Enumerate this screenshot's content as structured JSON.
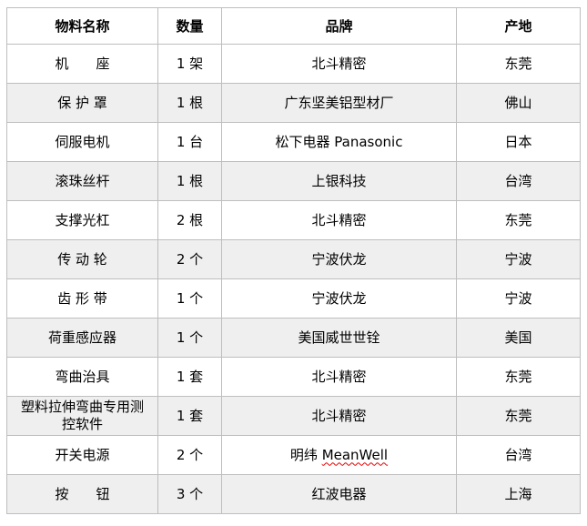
{
  "table": {
    "colors": {
      "border": "#bebebe",
      "alt_row_bg": "#efefef",
      "text": "#000000",
      "squiggle_underline": "#e60000"
    },
    "columns": [
      {
        "key": "name",
        "label": "物料名称"
      },
      {
        "key": "qty",
        "label": "数量"
      },
      {
        "key": "brand",
        "label": "品牌"
      },
      {
        "key": "origin",
        "label": "产地"
      }
    ],
    "rows": [
      {
        "name": "机　　座",
        "qty": "1 架",
        "brand": "北斗精密",
        "origin": "东莞"
      },
      {
        "name": "保 护 罩",
        "qty": "1 根",
        "brand": "广东坚美铝型材厂",
        "origin": "佛山"
      },
      {
        "name": "伺服电机",
        "qty": "1 台",
        "brand": "松下电器 Panasonic",
        "origin": "日本"
      },
      {
        "name": "滚珠丝杆",
        "qty": "1 根",
        "brand": "上银科技",
        "origin": "台湾"
      },
      {
        "name": "支撑光杠",
        "qty": "2 根",
        "brand": "北斗精密",
        "origin": "东莞"
      },
      {
        "name": "传 动 轮",
        "qty": "2 个",
        "brand": "宁波伏龙",
        "origin": "宁波"
      },
      {
        "name": "齿 形 带",
        "qty": "1 个",
        "brand": "宁波伏龙",
        "origin": "宁波"
      },
      {
        "name": "荷重感应器",
        "qty": "1 个",
        "brand": "美国威世世铨",
        "origin": "美国"
      },
      {
        "name": "弯曲治具",
        "qty": "1 套",
        "brand": "北斗精密",
        "origin": "东莞"
      },
      {
        "name": "塑料拉伸弯曲专用测\n控软件",
        "qty": "1 套",
        "brand": "北斗精密",
        "origin": "东莞"
      },
      {
        "name": "开关电源",
        "qty": "2 个",
        "brand": {
          "prefix": "明纬 ",
          "squiggle": "MeanWell"
        },
        "origin": "台湾"
      },
      {
        "name": "按　　钮",
        "qty": "3 个",
        "brand": "红波电器",
        "origin": "上海"
      }
    ]
  }
}
